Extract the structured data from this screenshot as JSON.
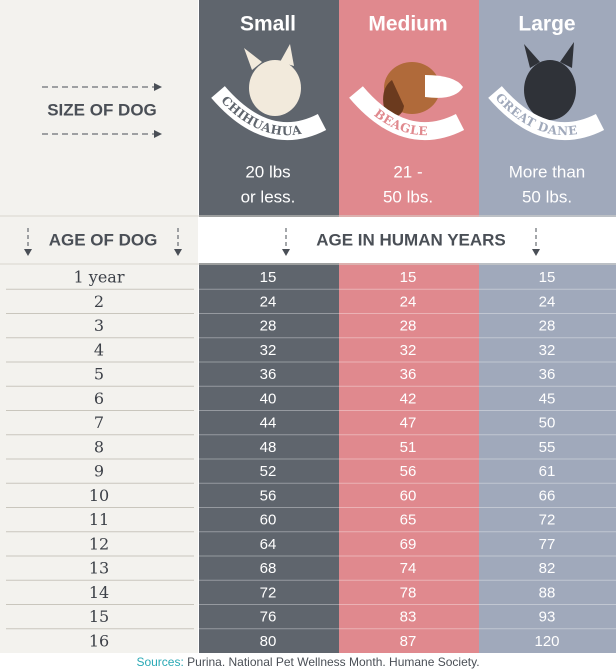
{
  "header": {
    "size_label": "SIZE OF DOG",
    "columns": [
      {
        "title": "Small",
        "breed": "CHIHUAHUA",
        "size_lines": [
          "20 lbs",
          "or less."
        ]
      },
      {
        "title": "Medium",
        "breed": "BEAGLE",
        "size_lines": [
          "21 -",
          "50 lbs."
        ]
      },
      {
        "title": "Large",
        "breed": "GREAT DANE",
        "size_lines": [
          "More than",
          "50 lbs."
        ]
      }
    ]
  },
  "subheader": {
    "age_label": "AGE OF DOG",
    "human_label": "AGE IN HUMAN YEARS"
  },
  "table": {
    "rows": [
      [
        "1 year",
        15,
        15,
        15
      ],
      [
        "2",
        24,
        24,
        24
      ],
      [
        "3",
        28,
        28,
        28
      ],
      [
        "4",
        32,
        32,
        32
      ],
      [
        "5",
        36,
        36,
        36
      ],
      [
        "6",
        40,
        42,
        45
      ],
      [
        "7",
        44,
        47,
        50
      ],
      [
        "8",
        48,
        51,
        55
      ],
      [
        "9",
        52,
        56,
        61
      ],
      [
        "10",
        56,
        60,
        66
      ],
      [
        "11",
        60,
        65,
        72
      ],
      [
        "12",
        64,
        69,
        77
      ],
      [
        "13",
        68,
        74,
        82
      ],
      [
        "14",
        72,
        78,
        88
      ],
      [
        "15",
        76,
        83,
        93
      ],
      [
        "16",
        80,
        87,
        120
      ]
    ]
  },
  "footer": {
    "sources_label": "Sources:",
    "sources": "Purina. National Pet Wellness Month. Humane Society."
  }
}
